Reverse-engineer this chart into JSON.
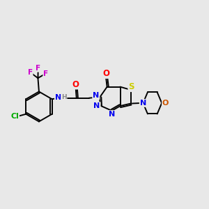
{
  "bg_color": "#e8e8e8",
  "fig_size": [
    3.0,
    3.0
  ],
  "dpi": 100,
  "bond_color": "#000000",
  "bond_lw": 1.4,
  "atom_colors": {
    "N": "#0000ee",
    "O": "#ff0000",
    "S": "#cccc00",
    "F": "#cc00cc",
    "Cl": "#00aa00",
    "H": "#888888"
  },
  "fs": 7.5
}
